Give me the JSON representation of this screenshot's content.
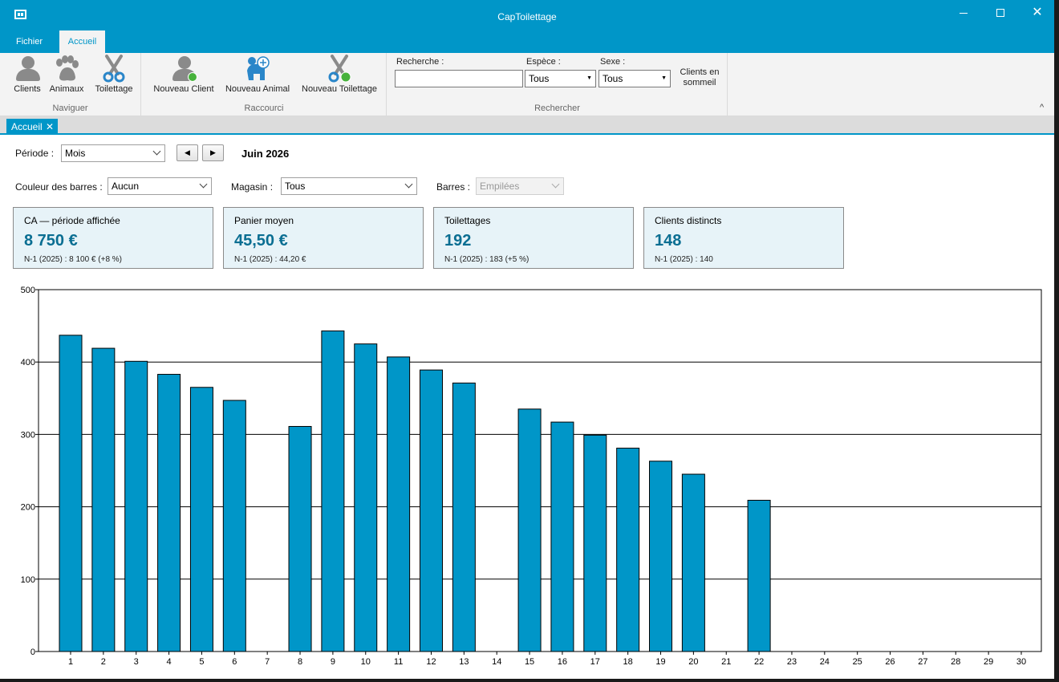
{
  "window": {
    "title": "CapToilettage",
    "close_glyph": "✕"
  },
  "menu": {
    "tabs": [
      {
        "label": "Fichier"
      },
      {
        "label": "Accueil"
      }
    ]
  },
  "ribbon": {
    "naviguer": {
      "label": "Naviguer",
      "buttons": [
        {
          "label": "Clients",
          "icon": "person-icon"
        },
        {
          "label": "Animaux",
          "icon": "paw-icon"
        },
        {
          "label": "Toilettage",
          "icon": "scissors-icon"
        }
      ]
    },
    "raccourci": {
      "label": "Raccourci",
      "buttons": [
        {
          "label": "Nouveau Client",
          "icon": "add-person-icon"
        },
        {
          "label": "Nouveau Animal",
          "icon": "add-animal-icon"
        },
        {
          "label": "Nouveau Toilettage",
          "icon": "add-scissors-icon"
        }
      ]
    },
    "rechercher": {
      "label": "Rechercher",
      "search_label": "Recherche :",
      "search_value": "",
      "espece_label": "Espèce :",
      "espece_value": "Tous",
      "sexe_label": "Sexe :",
      "sexe_value": "Tous",
      "sleeping_clients": "Clients en sommeil"
    },
    "collapse_glyph": "^"
  },
  "doc_tab": {
    "label": "Accueil",
    "close": "✕"
  },
  "filters": {
    "period_label": "Période :",
    "period_value": "Mois",
    "prev_glyph": "◀",
    "next_glyph": "▶",
    "period_title": "Juin 2026",
    "bar_color_label": "Couleur des barres :",
    "bar_color_value": "Aucun",
    "store_label": "Magasin :",
    "store_value": "Tous",
    "bars_label": "Barres :",
    "bars_value": "Empilées"
  },
  "cards": [
    {
      "title": "CA — période affichée",
      "value": "8 750 €",
      "sub": "N-1 (2025) : 8 100 € (+8 %)"
    },
    {
      "title": "Panier moyen",
      "value": "45,50 €",
      "sub": "N-1 (2025) : 44,20 €"
    },
    {
      "title": "Toilettages",
      "value": "192",
      "sub": "N-1 (2025) : 183 (+5 %)"
    },
    {
      "title": "Clients distincts",
      "value": "148",
      "sub": "N-1 (2025) : 140"
    }
  ],
  "colors": {
    "accent": "#0096c8",
    "bar": "#0096c8",
    "card_bg": "#e7f3f8",
    "card_value": "#0a6e92"
  },
  "chart_data": {
    "type": "bar",
    "categories": [
      "1",
      "2",
      "3",
      "4",
      "5",
      "6",
      "7",
      "8",
      "9",
      "10",
      "11",
      "12",
      "13",
      "14",
      "15",
      "16",
      "17",
      "18",
      "19",
      "20",
      "21",
      "22",
      "23",
      "24",
      "25",
      "26",
      "27",
      "28",
      "29",
      "30"
    ],
    "values": [
      437,
      419,
      401,
      383,
      365,
      347,
      0,
      311,
      443,
      425,
      407,
      389,
      371,
      0,
      335,
      317,
      299,
      281,
      263,
      245,
      0,
      209,
      0,
      0,
      0,
      0,
      0,
      0,
      0,
      0
    ],
    "yticks": [
      0,
      100,
      200,
      300,
      400,
      500
    ],
    "ylim": [
      0,
      500
    ],
    "grid": true
  }
}
